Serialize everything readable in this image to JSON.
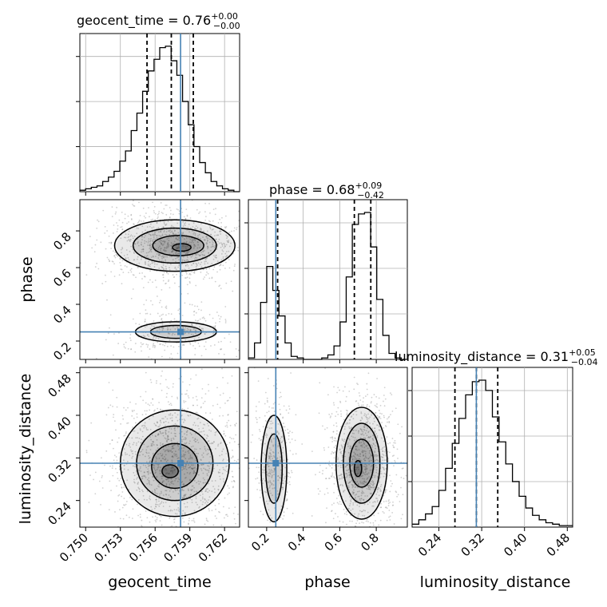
{
  "chart_data": {
    "type": "corner",
    "parameters": [
      "geocent_time",
      "phase",
      "luminosity_distance"
    ],
    "truth_color": "#4682b4",
    "truths": {
      "geocent_time": 0.7582,
      "phase": 0.25,
      "luminosity_distance": 0.31
    },
    "titles": [
      {
        "name": "geocent_time",
        "median": "0.76",
        "plus": "+0.00",
        "minus": "−0.00"
      },
      {
        "name": "phase",
        "median": "0.68",
        "plus": "+0.09",
        "minus": "−0.42"
      },
      {
        "name": "luminosity_distance",
        "median": "0.31",
        "plus": "+0.05",
        "minus": "−0.04"
      }
    ],
    "axes": {
      "geocent_time": {
        "range": [
          0.7495,
          0.7633
        ],
        "ticks": [
          "0.750",
          "0.753",
          "0.756",
          "0.759",
          "0.762"
        ]
      },
      "phase": {
        "range": [
          0.1,
          0.97
        ],
        "ticks": [
          "0.2",
          "0.4",
          "0.6",
          "0.8"
        ]
      },
      "luminosity_distance": {
        "range": [
          0.19,
          0.49
        ],
        "ticks": [
          "0.24",
          "0.32",
          "0.40",
          "0.48"
        ]
      }
    },
    "diagonal": [
      {
        "param": "geocent_time",
        "bins": [
          0.7495,
          0.7633
        ],
        "counts": [
          1,
          2,
          3,
          4,
          7,
          10,
          14,
          21,
          28,
          42,
          54,
          69,
          83,
          91,
          99,
          100,
          90,
          80,
          62,
          46,
          31,
          20,
          13,
          7,
          4,
          2,
          1,
          0
        ],
        "quantiles": [
          0.7553,
          0.7574,
          0.7593
        ]
      },
      {
        "param": "phase",
        "bins": [
          0.1,
          0.97
        ],
        "counts": [
          1,
          11,
          38,
          62,
          46,
          29,
          11,
          2,
          1,
          0,
          0,
          0,
          1,
          3,
          9,
          25,
          55,
          90,
          97,
          98,
          75,
          40,
          16,
          4,
          1,
          0
        ],
        "quantiles": [
          0.26,
          0.68,
          0.77
        ]
      },
      {
        "param": "luminosity_distance",
        "bins": [
          0.19,
          0.49
        ],
        "counts": [
          2,
          5,
          9,
          14,
          25,
          40,
          57,
          74,
          90,
          99,
          100,
          93,
          75,
          58,
          43,
          31,
          21,
          13,
          8,
          5,
          3,
          2,
          1,
          1
        ],
        "quantiles": [
          0.27,
          0.31,
          0.35
        ]
      }
    ],
    "grid": true
  }
}
